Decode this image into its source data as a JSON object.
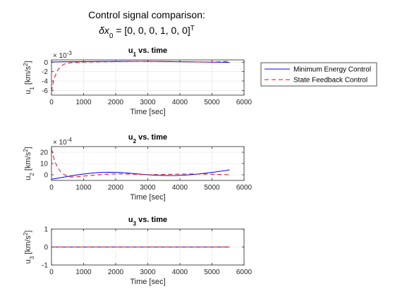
{
  "figure": {
    "title_line1": "Control signal comparison:",
    "title_line2_prefix": "δx",
    "title_line2_sub": "0",
    "title_line2_mid": " = [0, 0, 0, 1, 0, 0]",
    "title_line2_sup": "T"
  },
  "legend": {
    "entries": [
      "Minimum Energy Control",
      "State Feedback Control"
    ]
  },
  "colors": {
    "min_energy": "#0000ff",
    "state_feedback": "#ff0000",
    "axis": "#262626",
    "grid": "#e3e3e3"
  },
  "chart_data": [
    {
      "type": "line",
      "title_main": "u",
      "title_sub": "1",
      "title_rest": " vs. time",
      "xlabel": "Time [sec]",
      "ylabel_main": "u",
      "ylabel_sub": "1",
      "ylabel_rest": " [km/s",
      "ylabel_sup": "2",
      "ylabel_end": "]",
      "exponent_label": "× 10",
      "exponent_value": "-3",
      "xlim": [
        0,
        6000
      ],
      "ylim": [
        -0.007,
        0.0005
      ],
      "xticks": [
        0,
        1000,
        2000,
        3000,
        4000,
        5000,
        6000
      ],
      "yticks": [
        -0.006,
        -0.004,
        -0.002,
        0
      ],
      "yticklabels": [
        "-6",
        "-4",
        "-2",
        "0"
      ],
      "grid": true,
      "legend_placement": "outside-right",
      "series": [
        {
          "name": "Minimum Energy Control",
          "style": "solid",
          "x": [
            0,
            300,
            600,
            1000,
            1500,
            2000,
            2500,
            2800,
            3200,
            3600,
            4000,
            4500,
            5000,
            5550
          ],
          "y": [
            5e-05,
            8e-05,
            0.0001,
            0.00013,
            0.00016,
            0.00018,
            0.0002,
            0.0002,
            0.00018,
            0.00014,
            0.0001,
            6e-05,
            2e-05,
            -2e-05
          ]
        },
        {
          "name": "State Feedback Control",
          "style": "dashed",
          "x": [
            0,
            50,
            100,
            200,
            300,
            400,
            600,
            800,
            1000,
            1500,
            2000,
            2500,
            3000,
            3500,
            4000,
            4500,
            5000,
            5550
          ],
          "y": [
            -0.0062,
            -0.0044,
            -0.0031,
            -0.0016,
            -0.0008,
            -0.0004,
            -0.0001,
            0.0,
            4e-05,
            8e-05,
            0.00012,
            0.00018,
            0.00022,
            0.00018,
            0.00012,
            5e-05,
            2e-05,
            0.0002
          ]
        }
      ]
    },
    {
      "type": "line",
      "title_main": "u",
      "title_sub": "2",
      "title_rest": " vs. time",
      "xlabel": "Time [sec]",
      "ylabel_main": "u",
      "ylabel_sub": "2",
      "ylabel_rest": " [km/s",
      "ylabel_sup": "2",
      "ylabel_end": "]",
      "exponent_label": "× 10",
      "exponent_value": "-4",
      "xlim": [
        0,
        6000
      ],
      "ylim": [
        -0.0005,
        0.0025
      ],
      "xticks": [
        0,
        1000,
        2000,
        3000,
        4000,
        5000,
        6000
      ],
      "yticks": [
        0,
        0.001,
        0.002
      ],
      "yticklabels": [
        "0",
        "10",
        "20"
      ],
      "grid": true,
      "series": [
        {
          "name": "Minimum Energy Control",
          "style": "solid",
          "x": [
            0,
            300,
            600,
            900,
            1200,
            1500,
            1800,
            2100,
            2400,
            2700,
            3000,
            3300,
            3600,
            3900,
            4200,
            4500,
            4800,
            5100,
            5400,
            5550
          ],
          "y": [
            -0.0004,
            -0.00025,
            -0.0001,
            3e-05,
            0.00013,
            0.0002,
            0.00023,
            0.00021,
            0.00015,
            7e-05,
            0.0,
            -5e-05,
            -7e-05,
            -6e-05,
            -2e-05,
            5e-05,
            0.00014,
            0.00025,
            0.00037,
            0.00044
          ]
        },
        {
          "name": "State Feedback Control",
          "style": "dashed",
          "x": [
            0,
            50,
            100,
            200,
            300,
            400,
            600,
            800,
            1000,
            1300,
            1600,
            1900,
            2200,
            2500,
            2800,
            3100,
            3400,
            3700,
            4000,
            4300,
            4600,
            4900,
            5200,
            5550
          ],
          "y": [
            0.0023,
            0.0017,
            0.0012,
            0.0006,
            0.0002,
            0.0,
            -0.0002,
            -0.00018,
            -0.00012,
            -4e-05,
            3e-05,
            7e-05,
            8e-05,
            6e-05,
            3e-05,
            1e-05,
            2e-05,
            4e-05,
            6e-05,
            7e-05,
            7e-05,
            6e-05,
            3e-05,
            1e-05
          ]
        }
      ]
    },
    {
      "type": "line",
      "title_main": "u",
      "title_sub": "3",
      "title_rest": " vs. time",
      "xlabel": "Time [sec]",
      "ylabel_main": "u",
      "ylabel_sub": "3",
      "ylabel_rest": " [km/s",
      "ylabel_sup": "2",
      "ylabel_end": "]",
      "exponent_label": "",
      "exponent_value": "",
      "xlim": [
        0,
        6000
      ],
      "ylim": [
        -1,
        1
      ],
      "xticks": [
        0,
        1000,
        2000,
        3000,
        4000,
        5000,
        6000
      ],
      "yticks": [
        -1,
        0,
        1
      ],
      "yticklabels": [
        "-1",
        "0",
        "1"
      ],
      "grid": true,
      "series": [
        {
          "name": "Minimum Energy Control",
          "style": "solid",
          "x": [
            0,
            5550
          ],
          "y": [
            0,
            0
          ]
        },
        {
          "name": "State Feedback Control",
          "style": "dashed",
          "x": [
            0,
            5550
          ],
          "y": [
            0,
            0
          ]
        }
      ]
    }
  ]
}
